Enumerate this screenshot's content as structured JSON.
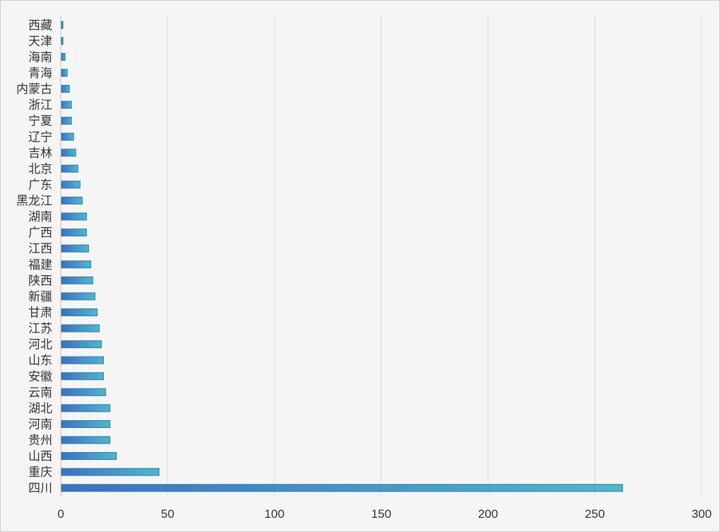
{
  "chart_data": {
    "type": "bar",
    "orientation": "horizontal",
    "title": "",
    "xlabel": "",
    "ylabel": "",
    "xlim": [
      0,
      300
    ],
    "x_ticks": [
      0,
      50,
      100,
      150,
      200,
      250,
      300
    ],
    "x_tick_labels": [
      "0",
      "50",
      "100",
      "150",
      "200",
      "250",
      "300"
    ],
    "grid": "vertical",
    "legend": "none",
    "categories": [
      "西藏",
      "天津",
      "海南",
      "青海",
      "内蒙古",
      "浙江",
      "宁夏",
      "辽宁",
      "吉林",
      "北京",
      "广东",
      "黑龙江",
      "湖南",
      "广西",
      "江西",
      "福建",
      "陕西",
      "新疆",
      "甘肃",
      "江苏",
      "河北",
      "山东",
      "安徽",
      "云南",
      "湖北",
      "河南",
      "贵州",
      "山西",
      "重庆",
      "四川"
    ],
    "values": [
      1,
      1,
      2,
      3,
      4,
      5,
      5,
      6,
      7,
      8,
      9,
      10,
      12,
      12,
      13,
      14,
      15,
      16,
      17,
      18,
      19,
      20,
      20,
      21,
      23,
      23,
      23,
      26,
      46,
      263
    ],
    "colors": {
      "bar_start": "#3f6fc4",
      "bar_end": "#4fb6cf",
      "bar_stroke": "#2a7f97",
      "grid": "#d9d9d9",
      "axis": "#bfbfbf",
      "background": "#f5f5f5"
    }
  }
}
